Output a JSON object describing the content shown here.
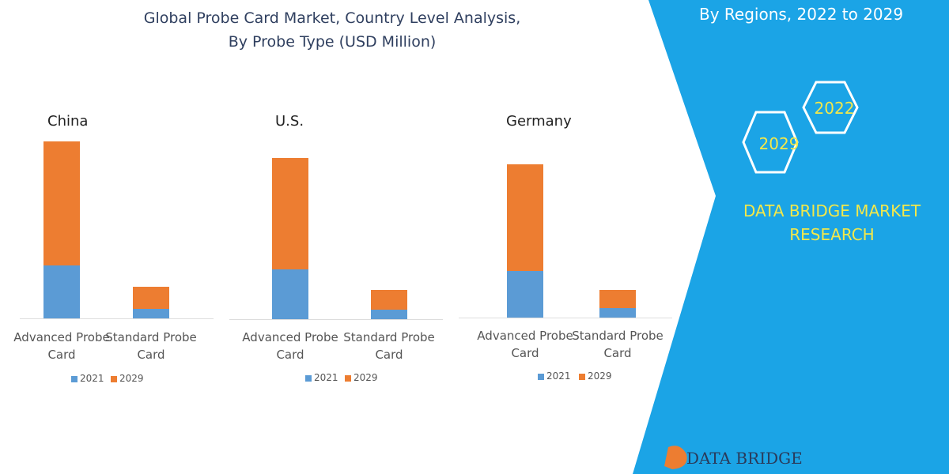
{
  "title": [
    "Global Probe Card Market, Country Level Analysis,",
    "By Probe Type (USD Million)"
  ],
  "chart_data": [
    {
      "type": "bar",
      "title": "China",
      "categories": [
        "Advanced Probe Card",
        "Standard Probe Card"
      ],
      "series": [
        {
          "name": "2021",
          "color": "#5b9bd5",
          "values": [
            67,
            12
          ]
        },
        {
          "name": "2029",
          "color": "#ed7d31",
          "values": [
            157,
            28
          ]
        }
      ]
    },
    {
      "type": "bar",
      "title": "U.S.",
      "categories": [
        "Advanced Probe Card",
        "Standard Probe Card"
      ],
      "series": [
        {
          "name": "2021",
          "color": "#5b9bd5",
          "values": [
            63,
            12
          ]
        },
        {
          "name": "2029",
          "color": "#ed7d31",
          "values": [
            141,
            25
          ]
        }
      ]
    },
    {
      "type": "bar",
      "title": "Germany",
      "categories": [
        "Advanced Probe Card",
        "Standard Probe Card"
      ],
      "series": [
        {
          "name": "2021",
          "color": "#5b9bd5",
          "values": [
            59,
            12
          ]
        },
        {
          "name": "2029",
          "color": "#ed7d31",
          "values": [
            135,
            23
          ]
        }
      ]
    }
  ],
  "panel": {
    "subtitle": "By Regions, 2022 to 2029",
    "hexagons": [
      "2022",
      "2029"
    ],
    "brand": [
      "DATA BRIDGE MARKET",
      "RESEARCH"
    ],
    "logo": "DATA BRIDGE"
  }
}
